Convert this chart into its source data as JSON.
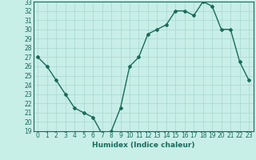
{
  "x": [
    0,
    1,
    2,
    3,
    4,
    5,
    6,
    7,
    8,
    9,
    10,
    11,
    12,
    13,
    14,
    15,
    16,
    17,
    18,
    19,
    20,
    21,
    22,
    23
  ],
  "y": [
    27,
    26,
    24.5,
    23,
    21.5,
    21,
    20.5,
    18.7,
    19,
    21.5,
    26,
    27,
    29.5,
    30,
    30.5,
    32,
    32,
    31.5,
    33,
    32.5,
    30,
    30,
    26.5,
    24.5
  ],
  "line_color": "#1a6b5a",
  "marker": "D",
  "marker_size": 2,
  "bg_color": "#c8eee8",
  "grid_color": "#a8d8d0",
  "xlabel": "Humidex (Indice chaleur)",
  "xlim": [
    -0.5,
    23.5
  ],
  "ylim": [
    19,
    33
  ],
  "yticks": [
    19,
    20,
    21,
    22,
    23,
    24,
    25,
    26,
    27,
    28,
    29,
    30,
    31,
    32,
    33
  ],
  "xticks": [
    0,
    1,
    2,
    3,
    4,
    5,
    6,
    7,
    8,
    9,
    10,
    11,
    12,
    13,
    14,
    15,
    16,
    17,
    18,
    19,
    20,
    21,
    22,
    23
  ],
  "tick_label_fontsize": 5.5,
  "xlabel_fontsize": 6.5,
  "line_width": 1.0
}
